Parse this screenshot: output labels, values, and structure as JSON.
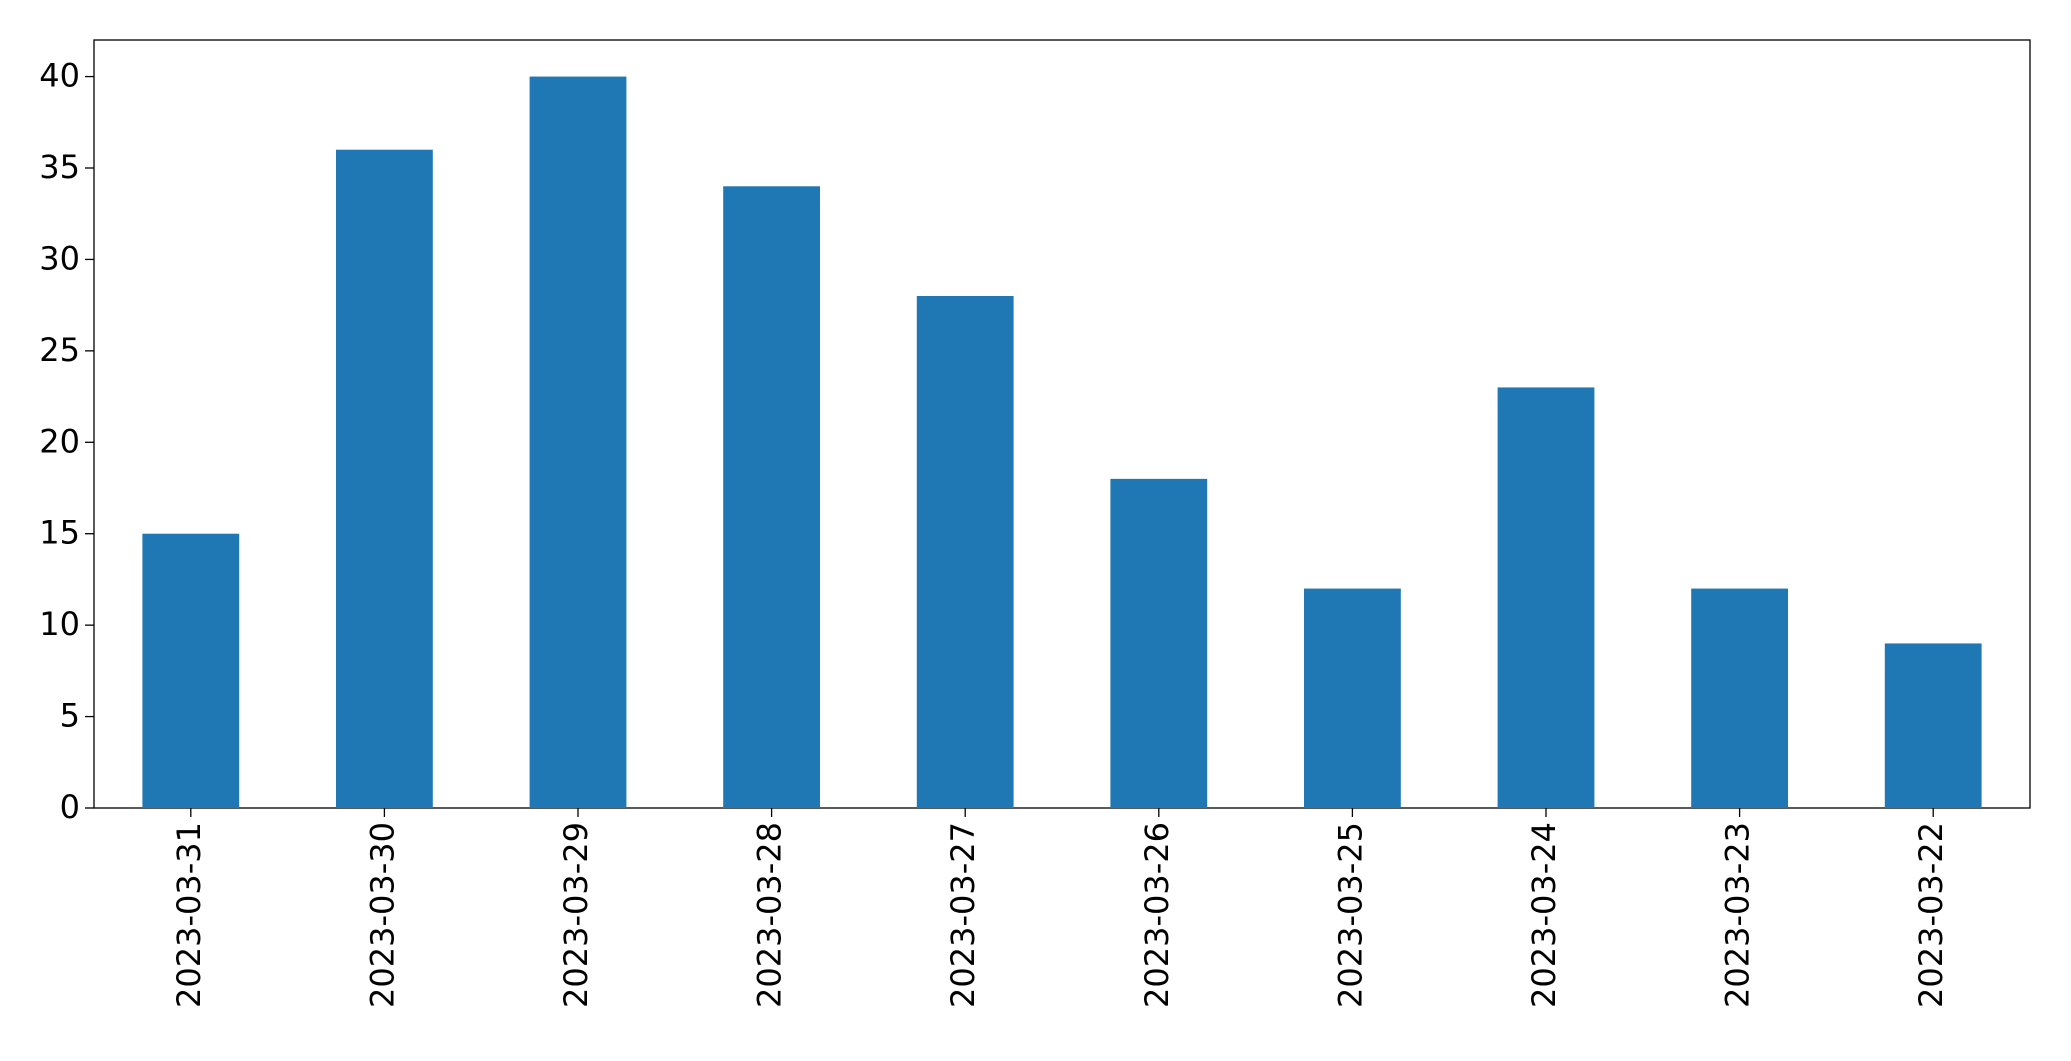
{
  "chart_data": {
    "type": "bar",
    "categories": [
      "2023-03-31",
      "2023-03-30",
      "2023-03-29",
      "2023-03-28",
      "2023-03-27",
      "2023-03-26",
      "2023-03-25",
      "2023-03-24",
      "2023-03-23",
      "2023-03-22"
    ],
    "values": [
      15,
      36,
      40,
      34,
      28,
      18,
      12,
      23,
      12,
      9
    ],
    "color": "#1f77b4",
    "ylim": [
      0,
      42
    ],
    "yticks": [
      0,
      5,
      10,
      15,
      20,
      25,
      30,
      35,
      40
    ],
    "grid": false
  }
}
